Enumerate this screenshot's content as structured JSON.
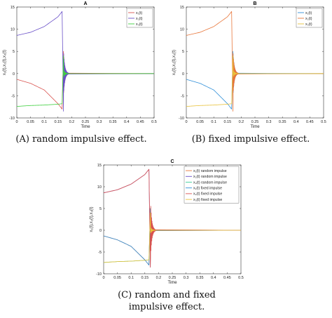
{
  "chart_data": [
    {
      "type": "line",
      "title": "A",
      "xlabel": "Time",
      "ylabel": "x₁(t),x₂(t),x₃(t)",
      "xlim": [
        0,
        0.5
      ],
      "ylim": [
        -10,
        15
      ],
      "xticks": [
        "0",
        "0.05",
        "0.1",
        "0.15",
        "0.2",
        "0.25",
        "0.3",
        "0.35",
        "0.4",
        "0.45",
        "0.5"
      ],
      "yticks": [
        "-10",
        "-5",
        "0",
        "5",
        "10",
        "15"
      ],
      "legend_position": "top-right",
      "impulse_time": 0.17,
      "series": [
        {
          "name": "x₁(t)",
          "color": "#d9534f",
          "x": [
            0,
            0.05,
            0.1,
            0.15,
            0.165,
            0.17,
            0.19,
            0.5
          ],
          "y": [
            -1.3,
            -2.2,
            -3.7,
            -6.8,
            -8.0,
            5.0,
            0,
            0
          ]
        },
        {
          "name": "x₂(t)",
          "color": "#6a50c8",
          "x": [
            0,
            0.05,
            0.1,
            0.15,
            0.165,
            0.17,
            0.19,
            0.5
          ],
          "y": [
            8.6,
            9.3,
            10.6,
            12.8,
            14.0,
            -8.5,
            0,
            0
          ]
        },
        {
          "name": "x₃(t)",
          "color": "#3ecf3e",
          "x": [
            0,
            0.05,
            0.1,
            0.15,
            0.165,
            0.17,
            0.19,
            0.5
          ],
          "y": [
            -7.4,
            -7.2,
            -7.1,
            -6.9,
            -6.8,
            4.0,
            0,
            0
          ]
        }
      ]
    },
    {
      "type": "line",
      "title": "B",
      "xlabel": "Time",
      "ylabel": "x₁(t),x₂(t),x₃(t)",
      "xlim": [
        0,
        0.5
      ],
      "ylim": [
        -10,
        15
      ],
      "xticks": [
        "0",
        "0.05",
        "0.1",
        "0.15",
        "0.2",
        "0.25",
        "0.3",
        "0.35",
        "0.4",
        "0.45",
        "0.5"
      ],
      "yticks": [
        "-10",
        "-5",
        "0",
        "5",
        "10",
        "15"
      ],
      "legend_position": "top-right",
      "impulse_time": 0.17,
      "series": [
        {
          "name": "x₁(t)",
          "color": "#2f8fd8",
          "x": [
            0,
            0.05,
            0.1,
            0.15,
            0.165,
            0.17,
            0.19,
            0.5
          ],
          "y": [
            -1.3,
            -2.2,
            -3.7,
            -6.8,
            -8.0,
            5.0,
            0,
            0
          ]
        },
        {
          "name": "x₂(t)",
          "color": "#e8763a",
          "x": [
            0,
            0.05,
            0.1,
            0.15,
            0.165,
            0.17,
            0.19,
            0.5
          ],
          "y": [
            8.6,
            9.3,
            10.6,
            12.8,
            14.0,
            -8.5,
            0,
            0
          ]
        },
        {
          "name": "x₃(t)",
          "color": "#e8c13a",
          "x": [
            0,
            0.05,
            0.1,
            0.15,
            0.165,
            0.17,
            0.19,
            0.5
          ],
          "y": [
            -7.4,
            -7.2,
            -7.1,
            -6.9,
            -6.8,
            4.0,
            0,
            0
          ]
        }
      ]
    },
    {
      "type": "line",
      "title": "C",
      "xlabel": "Time",
      "ylabel": "x₁(t),x₂(t),x₃(t)",
      "xlim": [
        0,
        0.5
      ],
      "ylim": [
        -10,
        15
      ],
      "xticks": [
        "0",
        "0.05",
        "0.1",
        "0.15",
        "0.2",
        "0.25",
        "0.3",
        "0.35",
        "0.4",
        "0.45",
        "0.5"
      ],
      "yticks": [
        "-10",
        "-5",
        "0",
        "5",
        "10",
        "15"
      ],
      "legend_position": "top-right",
      "impulse_time": 0.17,
      "series": [
        {
          "name": "x₁(t) random impulse",
          "color": "#e8763a",
          "x": [
            0,
            0.05,
            0.1,
            0.15,
            0.165,
            0.17,
            0.19,
            0.5
          ],
          "y": [
            -1.3,
            -2.2,
            -3.7,
            -6.8,
            -8.0,
            5.0,
            0,
            0
          ]
        },
        {
          "name": "x₂(t) random impulse",
          "color": "#6a50c8",
          "x": [
            0,
            0.05,
            0.1,
            0.15,
            0.165,
            0.17,
            0.19,
            0.5
          ],
          "y": [
            8.6,
            9.3,
            10.6,
            12.8,
            14.0,
            -8.5,
            0,
            0
          ]
        },
        {
          "name": "x₃(t) random impulse",
          "color": "#3ecf9a",
          "x": [
            0,
            0.05,
            0.1,
            0.15,
            0.165,
            0.17,
            0.19,
            0.5
          ],
          "y": [
            -7.4,
            -7.2,
            -7.1,
            -6.9,
            -6.8,
            4.0,
            0,
            0
          ]
        },
        {
          "name": "x₁(t) fixed impulse",
          "color": "#2f8fd8",
          "x": [
            0,
            0.05,
            0.1,
            0.15,
            0.165,
            0.17,
            0.19,
            0.5
          ],
          "y": [
            -1.3,
            -2.2,
            -3.7,
            -6.8,
            -8.0,
            5.0,
            0,
            0
          ]
        },
        {
          "name": "x₂(t) fixed impulse",
          "color": "#d9534f",
          "x": [
            0,
            0.05,
            0.1,
            0.15,
            0.165,
            0.17,
            0.19,
            0.5
          ],
          "y": [
            8.6,
            9.3,
            10.6,
            12.8,
            14.0,
            -8.5,
            0,
            0
          ]
        },
        {
          "name": "x₃(t) fixed impulse",
          "color": "#e8c13a",
          "x": [
            0,
            0.05,
            0.1,
            0.15,
            0.165,
            0.17,
            0.19,
            0.5
          ],
          "y": [
            -7.4,
            -7.2,
            -7.1,
            -6.9,
            -6.8,
            4.0,
            0,
            0
          ]
        }
      ]
    }
  ],
  "captions": [
    {
      "label": "(A)",
      "text": "random impulsive effect."
    },
    {
      "label": "(B)",
      "text": "fixed impulsive effect."
    },
    {
      "label": "(C)",
      "text": "random and fixed",
      "line2": "impulsive effect."
    }
  ]
}
